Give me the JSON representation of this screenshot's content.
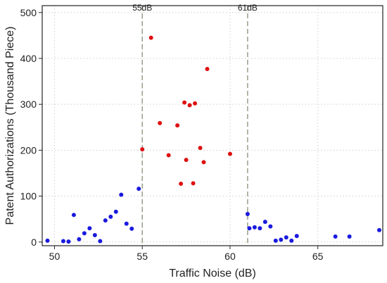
{
  "chart_data": {
    "type": "scatter",
    "title": "",
    "xlabel": "Traffic Noise (dB)",
    "ylabel": "Patent Authorizations (Thousand Piece)",
    "xlim": [
      49.3,
      68.7
    ],
    "ylim": [
      -8,
      515
    ],
    "x_ticks": [
      50,
      55,
      60,
      65
    ],
    "y_ticks": [
      0,
      100,
      200,
      300,
      400,
      500
    ],
    "grid": true,
    "legend": "none",
    "reference_lines": [
      {
        "x": 55,
        "label": "55dB",
        "color": "#9aa58e",
        "style": "dashed"
      },
      {
        "x": 61,
        "label": "61dB",
        "color": "#9aa58e",
        "style": "dashed"
      }
    ],
    "series": [
      {
        "color": "#1a1adf",
        "points": [
          [
            49.6,
            3
          ],
          [
            50.5,
            2
          ],
          [
            50.8,
            1
          ],
          [
            51.1,
            59
          ],
          [
            51.4,
            6
          ],
          [
            51.7,
            19
          ],
          [
            52.0,
            30
          ],
          [
            52.3,
            15
          ],
          [
            52.6,
            2
          ],
          [
            52.9,
            47
          ],
          [
            53.2,
            55
          ],
          [
            53.5,
            66
          ],
          [
            53.8,
            103
          ],
          [
            54.1,
            40
          ],
          [
            54.4,
            29
          ],
          [
            54.8,
            116
          ],
          [
            61.0,
            61
          ],
          [
            61.1,
            30
          ],
          [
            61.4,
            32
          ],
          [
            61.7,
            30
          ],
          [
            62.0,
            44
          ],
          [
            62.3,
            34
          ],
          [
            62.6,
            3
          ],
          [
            62.9,
            5
          ],
          [
            63.2,
            10
          ],
          [
            63.5,
            3
          ],
          [
            63.8,
            13
          ],
          [
            66.0,
            12
          ],
          [
            66.8,
            12
          ],
          [
            68.5,
            26
          ]
        ]
      },
      {
        "color": "#dd1111",
        "points": [
          [
            55.0,
            202
          ],
          [
            55.5,
            445
          ],
          [
            56.0,
            259
          ],
          [
            56.5,
            189
          ],
          [
            57.0,
            254
          ],
          [
            57.2,
            127
          ],
          [
            57.4,
            304
          ],
          [
            57.5,
            179
          ],
          [
            57.7,
            298
          ],
          [
            57.9,
            128
          ],
          [
            58.0,
            302
          ],
          [
            58.3,
            205
          ],
          [
            58.5,
            174
          ],
          [
            58.7,
            377
          ],
          [
            60.0,
            192
          ]
        ]
      }
    ]
  }
}
